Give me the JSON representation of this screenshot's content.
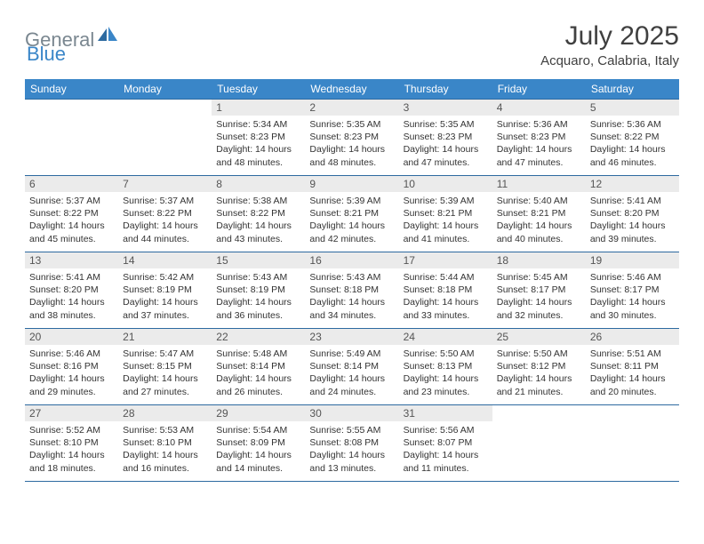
{
  "logo": {
    "word1": "General",
    "word2": "Blue"
  },
  "title": "July 2025",
  "location": "Acquaro, Calabria, Italy",
  "colors": {
    "header_bg": "#3a86c8",
    "header_fg": "#ffffff",
    "rule": "#2d6aa0",
    "daynum_bg": "#ebebeb",
    "daynum_fg": "#555555",
    "text": "#333333",
    "logo_gray": "#7a8790",
    "logo_blue": "#3a86c8"
  },
  "day_headers": [
    "Sunday",
    "Monday",
    "Tuesday",
    "Wednesday",
    "Thursday",
    "Friday",
    "Saturday"
  ],
  "weeks": [
    [
      null,
      null,
      {
        "n": "1",
        "sr": "5:34 AM",
        "ss": "8:23 PM",
        "h": "14",
        "m": "48"
      },
      {
        "n": "2",
        "sr": "5:35 AM",
        "ss": "8:23 PM",
        "h": "14",
        "m": "48"
      },
      {
        "n": "3",
        "sr": "5:35 AM",
        "ss": "8:23 PM",
        "h": "14",
        "m": "47"
      },
      {
        "n": "4",
        "sr": "5:36 AM",
        "ss": "8:23 PM",
        "h": "14",
        "m": "47"
      },
      {
        "n": "5",
        "sr": "5:36 AM",
        "ss": "8:22 PM",
        "h": "14",
        "m": "46"
      }
    ],
    [
      {
        "n": "6",
        "sr": "5:37 AM",
        "ss": "8:22 PM",
        "h": "14",
        "m": "45"
      },
      {
        "n": "7",
        "sr": "5:37 AM",
        "ss": "8:22 PM",
        "h": "14",
        "m": "44"
      },
      {
        "n": "8",
        "sr": "5:38 AM",
        "ss": "8:22 PM",
        "h": "14",
        "m": "43"
      },
      {
        "n": "9",
        "sr": "5:39 AM",
        "ss": "8:21 PM",
        "h": "14",
        "m": "42"
      },
      {
        "n": "10",
        "sr": "5:39 AM",
        "ss": "8:21 PM",
        "h": "14",
        "m": "41"
      },
      {
        "n": "11",
        "sr": "5:40 AM",
        "ss": "8:21 PM",
        "h": "14",
        "m": "40"
      },
      {
        "n": "12",
        "sr": "5:41 AM",
        "ss": "8:20 PM",
        "h": "14",
        "m": "39"
      }
    ],
    [
      {
        "n": "13",
        "sr": "5:41 AM",
        "ss": "8:20 PM",
        "h": "14",
        "m": "38"
      },
      {
        "n": "14",
        "sr": "5:42 AM",
        "ss": "8:19 PM",
        "h": "14",
        "m": "37"
      },
      {
        "n": "15",
        "sr": "5:43 AM",
        "ss": "8:19 PM",
        "h": "14",
        "m": "36"
      },
      {
        "n": "16",
        "sr": "5:43 AM",
        "ss": "8:18 PM",
        "h": "14",
        "m": "34"
      },
      {
        "n": "17",
        "sr": "5:44 AM",
        "ss": "8:18 PM",
        "h": "14",
        "m": "33"
      },
      {
        "n": "18",
        "sr": "5:45 AM",
        "ss": "8:17 PM",
        "h": "14",
        "m": "32"
      },
      {
        "n": "19",
        "sr": "5:46 AM",
        "ss": "8:17 PM",
        "h": "14",
        "m": "30"
      }
    ],
    [
      {
        "n": "20",
        "sr": "5:46 AM",
        "ss": "8:16 PM",
        "h": "14",
        "m": "29"
      },
      {
        "n": "21",
        "sr": "5:47 AM",
        "ss": "8:15 PM",
        "h": "14",
        "m": "27"
      },
      {
        "n": "22",
        "sr": "5:48 AM",
        "ss": "8:14 PM",
        "h": "14",
        "m": "26"
      },
      {
        "n": "23",
        "sr": "5:49 AM",
        "ss": "8:14 PM",
        "h": "14",
        "m": "24"
      },
      {
        "n": "24",
        "sr": "5:50 AM",
        "ss": "8:13 PM",
        "h": "14",
        "m": "23"
      },
      {
        "n": "25",
        "sr": "5:50 AM",
        "ss": "8:12 PM",
        "h": "14",
        "m": "21"
      },
      {
        "n": "26",
        "sr": "5:51 AM",
        "ss": "8:11 PM",
        "h": "14",
        "m": "20"
      }
    ],
    [
      {
        "n": "27",
        "sr": "5:52 AM",
        "ss": "8:10 PM",
        "h": "14",
        "m": "18"
      },
      {
        "n": "28",
        "sr": "5:53 AM",
        "ss": "8:10 PM",
        "h": "14",
        "m": "16"
      },
      {
        "n": "29",
        "sr": "5:54 AM",
        "ss": "8:09 PM",
        "h": "14",
        "m": "14"
      },
      {
        "n": "30",
        "sr": "5:55 AM",
        "ss": "8:08 PM",
        "h": "14",
        "m": "13"
      },
      {
        "n": "31",
        "sr": "5:56 AM",
        "ss": "8:07 PM",
        "h": "14",
        "m": "11"
      },
      null,
      null
    ]
  ],
  "labels": {
    "sunrise_prefix": "Sunrise: ",
    "sunset_prefix": "Sunset: ",
    "daylight_prefix": "Daylight: ",
    "hours_word": " hours",
    "and_word": "and ",
    "minutes_word": " minutes."
  }
}
